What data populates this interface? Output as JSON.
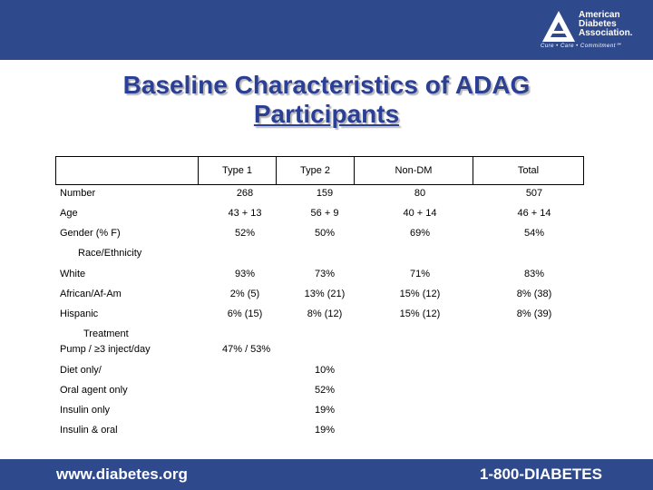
{
  "logo": {
    "line1": "American",
    "line2": "Diabetes",
    "line3": "Association.",
    "tagline": "Cure • Care • Commitment℠"
  },
  "title": {
    "line1": "Baseline Characteristics of ADAG",
    "line2": "Participants"
  },
  "table": {
    "headers": [
      "Type 1",
      "Type 2",
      "Non-DM",
      "Total"
    ],
    "number": {
      "label": "Number",
      "values": [
        "268",
        "159",
        "80",
        "507"
      ]
    },
    "age": {
      "label": "Age",
      "values": [
        "43 + 13",
        "56 + 9",
        "40 + 14",
        "46 + 14"
      ]
    },
    "gender": {
      "label": "Gender (% F)",
      "values": [
        "52%",
        "50%",
        "69%",
        "54%"
      ]
    },
    "race_heading": "Race/Ethnicity",
    "white": {
      "label": "White",
      "values": [
        "93%",
        "73%",
        "71%",
        "83%"
      ]
    },
    "african": {
      "label": "African/Af-Am",
      "values": [
        "2% (5)",
        "13% (21)",
        "15% (12)",
        "8% (38)"
      ]
    },
    "hispanic": {
      "label": "Hispanic",
      "values": [
        "6% (15)",
        "8% (12)",
        "15% (12)",
        "8% (39)"
      ]
    },
    "treatment_heading": "Treatment",
    "pump": {
      "label": "Pump / ≥3 inject/day",
      "value": "47% / 53%"
    },
    "diet": {
      "label": "Diet only/",
      "value": "10%"
    },
    "oral": {
      "label": "Oral agent only",
      "value": "52%"
    },
    "insulin": {
      "label": "Insulin only",
      "value": "19%"
    },
    "insulin_oral": {
      "label": "Insulin & oral",
      "value": "19%"
    }
  },
  "footer": {
    "website": "www.diabetes.org",
    "phone": "1-800-DIABETES"
  },
  "colors": {
    "bar": "#2e4a8c",
    "title": "#2b3f95"
  }
}
